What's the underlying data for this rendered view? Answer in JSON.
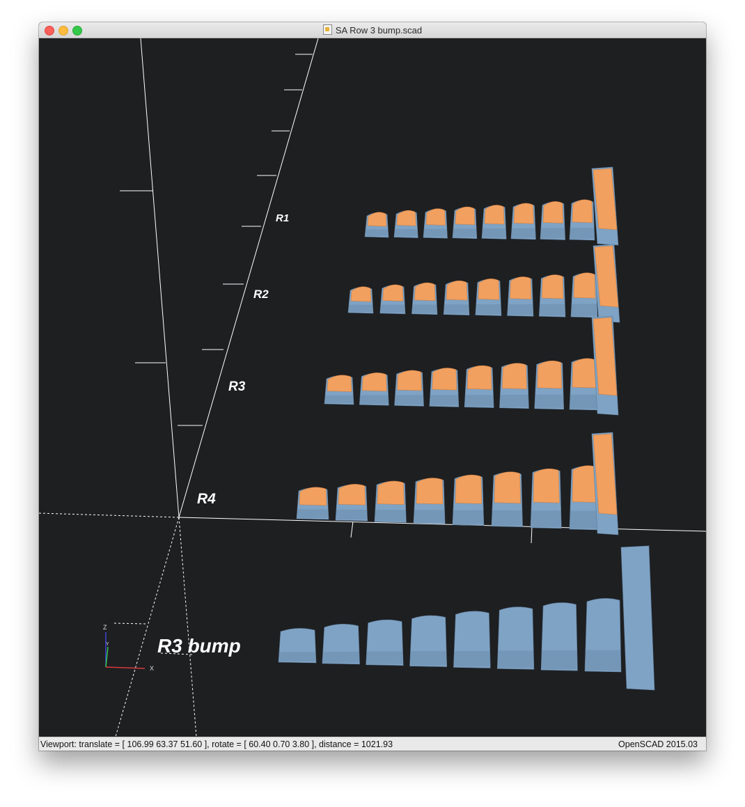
{
  "window": {
    "title": "SA Row 3 bump.scad"
  },
  "viewport": {
    "background": "#1e1f21",
    "cap_top_color": "#f1a05f",
    "cap_body_color": "#7fa3c5",
    "axis_color": "#ffffff",
    "row_labels": {
      "r1": "R1",
      "r2": "R2",
      "r3": "R3",
      "r4": "R4",
      "r3_bump": "R3 bump"
    },
    "axes_gizmo": {
      "x": "X",
      "y": "Y",
      "z": "Z"
    }
  },
  "statusbar": {
    "viewport_info": "Viewport: translate = [ 106.99 63.37 51.60 ], rotate = [ 60.40 0.70 3.80 ], distance = 1021.93",
    "version": "OpenSCAD 2015.03"
  }
}
